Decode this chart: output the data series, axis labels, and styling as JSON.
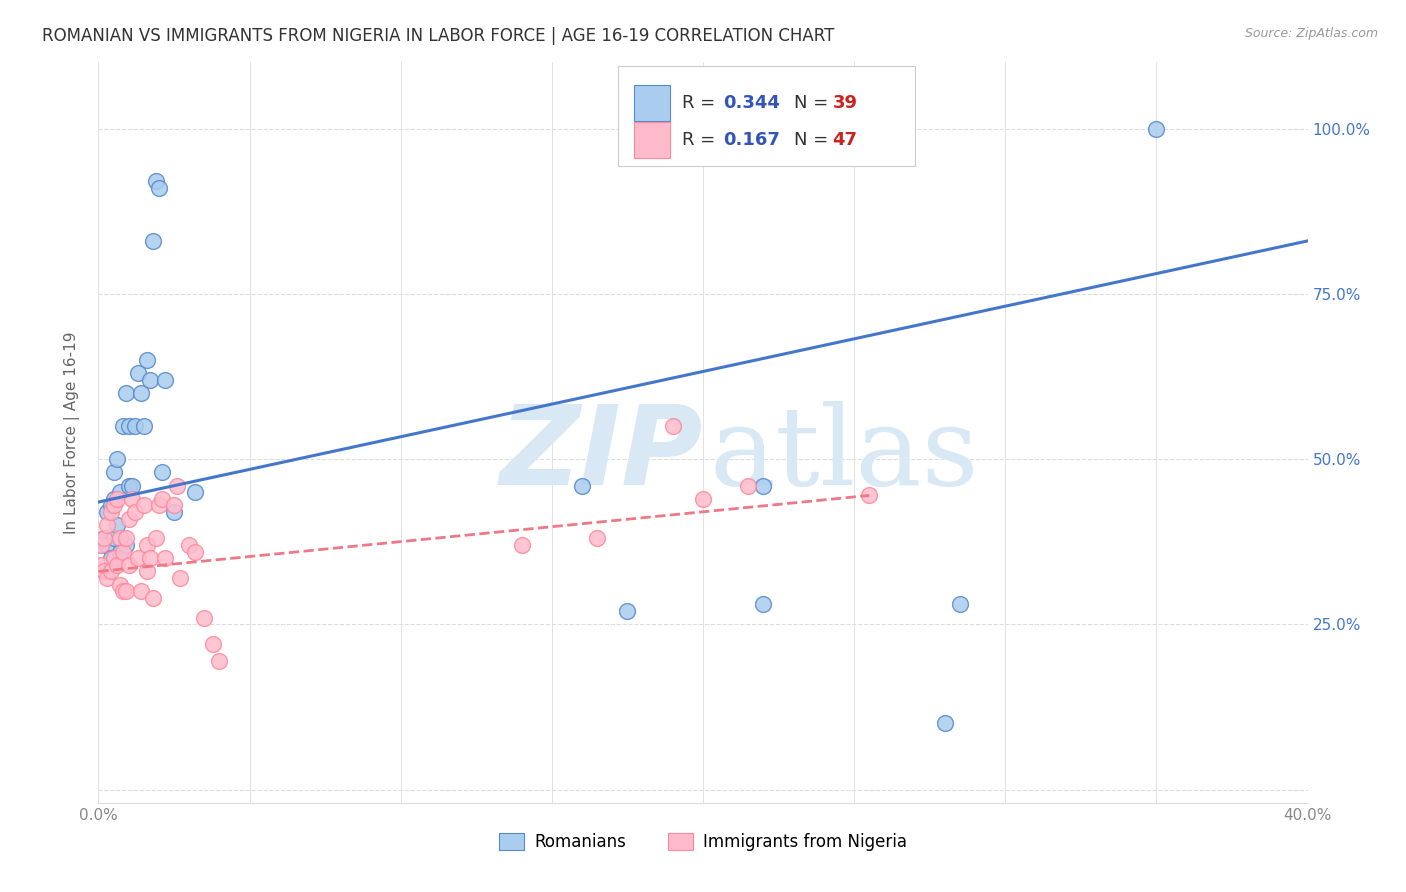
{
  "title": "ROMANIAN VS IMMIGRANTS FROM NIGERIA IN LABOR FORCE | AGE 16-19 CORRELATION CHART",
  "source": "Source: ZipAtlas.com",
  "ylabel": "In Labor Force | Age 16-19",
  "xlim": [
    0.0,
    0.4
  ],
  "ylim": [
    -0.02,
    1.1
  ],
  "xticks": [
    0.0,
    0.05,
    0.1,
    0.15,
    0.2,
    0.25,
    0.3,
    0.35,
    0.4
  ],
  "xticklabels": [
    "0.0%",
    "",
    "",
    "",
    "",
    "",
    "",
    "",
    "40.0%"
  ],
  "yticks": [
    0.0,
    0.25,
    0.5,
    0.75,
    1.0
  ],
  "yticklabels_right": [
    "",
    "25.0%",
    "50.0%",
    "75.0%",
    "100.0%"
  ],
  "blue_R": 0.344,
  "blue_N": 39,
  "pink_R": 0.167,
  "pink_N": 47,
  "blue_line_x": [
    0.0,
    0.4
  ],
  "blue_line_y": [
    0.435,
    0.83
  ],
  "pink_line_x": [
    0.0,
    0.255
  ],
  "pink_line_y": [
    0.33,
    0.445
  ],
  "blue_scatter_x": [
    0.001,
    0.002,
    0.003,
    0.003,
    0.004,
    0.004,
    0.005,
    0.005,
    0.005,
    0.006,
    0.006,
    0.007,
    0.007,
    0.008,
    0.009,
    0.009,
    0.01,
    0.01,
    0.011,
    0.012,
    0.013,
    0.014,
    0.015,
    0.016,
    0.017,
    0.018,
    0.019,
    0.02,
    0.021,
    0.022,
    0.025,
    0.032,
    0.16,
    0.175,
    0.22,
    0.22,
    0.28,
    0.285,
    0.35
  ],
  "blue_scatter_y": [
    0.37,
    0.38,
    0.37,
    0.42,
    0.35,
    0.43,
    0.38,
    0.44,
    0.48,
    0.4,
    0.5,
    0.36,
    0.45,
    0.55,
    0.6,
    0.37,
    0.46,
    0.55,
    0.46,
    0.55,
    0.63,
    0.6,
    0.55,
    0.65,
    0.62,
    0.83,
    0.92,
    0.91,
    0.48,
    0.62,
    0.42,
    0.45,
    0.46,
    0.27,
    0.46,
    0.28,
    0.1,
    0.28,
    1.0
  ],
  "pink_scatter_x": [
    0.001,
    0.001,
    0.002,
    0.002,
    0.003,
    0.003,
    0.004,
    0.004,
    0.005,
    0.005,
    0.006,
    0.006,
    0.007,
    0.007,
    0.008,
    0.008,
    0.009,
    0.009,
    0.01,
    0.01,
    0.011,
    0.012,
    0.013,
    0.014,
    0.015,
    0.016,
    0.016,
    0.017,
    0.018,
    0.019,
    0.02,
    0.021,
    0.022,
    0.025,
    0.026,
    0.027,
    0.03,
    0.032,
    0.035,
    0.038,
    0.04,
    0.14,
    0.165,
    0.19,
    0.2,
    0.215,
    0.255
  ],
  "pink_scatter_y": [
    0.34,
    0.37,
    0.33,
    0.38,
    0.32,
    0.4,
    0.33,
    0.42,
    0.35,
    0.43,
    0.34,
    0.44,
    0.31,
    0.38,
    0.3,
    0.36,
    0.3,
    0.38,
    0.34,
    0.41,
    0.44,
    0.42,
    0.35,
    0.3,
    0.43,
    0.37,
    0.33,
    0.35,
    0.29,
    0.38,
    0.43,
    0.44,
    0.35,
    0.43,
    0.46,
    0.32,
    0.37,
    0.36,
    0.26,
    0.22,
    0.195,
    0.37,
    0.38,
    0.55,
    0.44,
    0.46,
    0.445
  ],
  "blue_color": "#AACCEE",
  "pink_color": "#FFBBCC",
  "blue_edge_color": "#5588CC",
  "pink_edge_color": "#FF8899",
  "blue_line_color": "#4477CC",
  "pink_line_color": "#EE7788",
  "watermark_zip": "ZIP",
  "watermark_atlas": "atlas",
  "watermark_color": "#D8E8F5",
  "legend_R_label_color": "#333333",
  "legend_val_color": "#3355BB",
  "legend_N_val_color": "#CC2222",
  "background_color": "#FFFFFF",
  "grid_color": "#DDDDDD",
  "tick_color": "#888888",
  "title_color": "#333333",
  "source_color": "#999999",
  "ylabel_color": "#666666",
  "right_ytick_color": "#4477CC"
}
